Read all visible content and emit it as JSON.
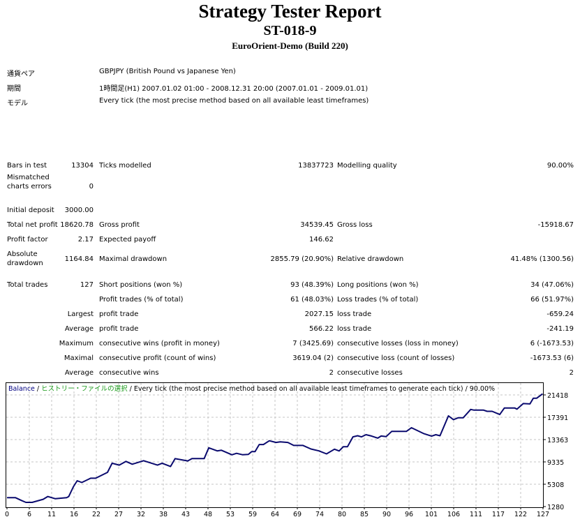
{
  "header": {
    "title": "Strategy Tester Report",
    "expert": "ST-018-9",
    "server": "EuroOrient-Demo (Build 220)"
  },
  "info": [
    {
      "label": "通貨ペア",
      "value": "GBPJPY (British Pound vs Japanese Yen)"
    },
    {
      "label": "期間",
      "value": "1時間足(H1) 2007.01.02 01:00 - 2008.12.31 20:00 (2007.01.01 - 2009.01.01)"
    },
    {
      "label": "モデル",
      "value": "Every tick (the most precise method based on all available least timeframes)"
    }
  ],
  "stats": [
    {
      "l1": "Bars in test",
      "v1": "13304",
      "l2": "Ticks modelled",
      "v2": "13837723",
      "l3": "Modelling quality",
      "v3": "90.00%"
    },
    {
      "l1": "Mismatched charts errors",
      "v1": "0",
      "l2": "",
      "v2": "",
      "l3": "",
      "v3": ""
    },
    {
      "l1": "Initial deposit",
      "v1": "3000.00",
      "l2": "",
      "v2": "",
      "l3": "",
      "v3": ""
    },
    {
      "l1": "Total net profit",
      "v1": "18620.78",
      "l2": "Gross profit",
      "v2": "34539.45",
      "l3": "Gross loss",
      "v3": "-15918.67"
    },
    {
      "l1": "Profit factor",
      "v1": "2.17",
      "l2": "Expected payoff",
      "v2": "146.62",
      "l3": "",
      "v3": ""
    },
    {
      "l1": "Absolute drawdown",
      "v1": "1164.84",
      "l2": "Maximal drawdown",
      "v2": "2855.79 (20.90%)",
      "l3": "Relative drawdown",
      "v3": "41.48% (1300.56)"
    },
    {
      "l1": "Total trades",
      "v1": "127",
      "l2": "Short positions (won %)",
      "v2": "93 (48.39%)",
      "l3": "Long positions (won %)",
      "v3": "34 (47.06%)"
    },
    {
      "l1": "",
      "v1": "",
      "l2": "Profit trades (% of total)",
      "v2": "61 (48.03%)",
      "l3": "Loss trades (% of total)",
      "v3": "66 (51.97%)"
    },
    {
      "l1": "",
      "v1": "Largest",
      "l2": "profit trade",
      "v2": "2027.15",
      "l3": "loss trade",
      "v3": "-659.24"
    },
    {
      "l1": "",
      "v1": "Average",
      "l2": "profit trade",
      "v2": "566.22",
      "l3": "loss trade",
      "v3": "-241.19"
    },
    {
      "l1": "",
      "v1": "Maximum",
      "l2": "consecutive wins (profit in money)",
      "v2": "7 (3425.69)",
      "l3": "consecutive losses (loss in money)",
      "v3": "6 (-1673.53)"
    },
    {
      "l1": "",
      "v1": "Maximal",
      "l2": "consecutive profit (count of wins)",
      "v2": "3619.04 (2)",
      "l3": "consecutive loss (count of losses)",
      "v3": "-1673.53 (6)"
    },
    {
      "l1": "",
      "v1": "Average",
      "l2": "consecutive wins",
      "v2": "2",
      "l3": "consecutive losses",
      "v3": "2"
    }
  ],
  "chart_data": {
    "type": "line",
    "title_parts": [
      "Balance",
      " / ",
      "ヒストリー・ファイルの選択",
      " / Every tick (the most precise method based on all available least timeframes to generate each tick) / 90.00%"
    ],
    "xlabel": "",
    "ylabel": "",
    "xlim": [
      0,
      127.5
    ],
    "ylim": [
      1280,
      21418
    ],
    "x_ticks": [
      "0",
      "6",
      "11",
      "16",
      "22",
      "27",
      "32",
      "38",
      "43",
      "48",
      "53",
      "59",
      "64",
      "69",
      "74",
      "80",
      "85",
      "90",
      "96",
      "101",
      "106",
      "111",
      "117",
      "122",
      "127"
    ],
    "y_ticks": [
      "21418",
      "17391",
      "13363",
      "9335",
      "5308",
      "1280"
    ],
    "grid": true,
    "colors": {
      "line": "#0a0a6e",
      "grid": "#c4c4c4",
      "balance_label": "#000080",
      "history_label": "#1a9a1a"
    },
    "series": [
      {
        "name": "Balance",
        "x": [
          0,
          2,
          3.4,
          4.5,
          6,
          8.6,
          9.7,
          11.5,
          14.2,
          14.7,
          15.8,
          16.7,
          17.8,
          19.9,
          21.1,
          23.9,
          25,
          26.7,
          28.3,
          29.8,
          32.5,
          35.8,
          36.9,
          38.9,
          40,
          43,
          44,
          46.9,
          48,
          50,
          51,
          53.5,
          54.6,
          56,
          57.4,
          58.2,
          59,
          60,
          61,
          62.4,
          64,
          65,
          66.8,
          68.2,
          70.4,
          72.3,
          74.2,
          76,
          77.9,
          79,
          80,
          81,
          82.3,
          83.4,
          84.3,
          85.4,
          86.7,
          88.2,
          89,
          90.2,
          91.5,
          95,
          96.2,
          99.2,
          101,
          102,
          103,
          105,
          106.2,
          107.3,
          108.5,
          110.3,
          111,
          113.3,
          114.2,
          115.4,
          117.2,
          118.3,
          120.8,
          121.3,
          122.8,
          124.4,
          125.2,
          126,
          127.4
        ],
        "y": [
          3000,
          3000,
          2500,
          2160,
          2160,
          2700,
          3200,
          2800,
          3000,
          3200,
          4970,
          6030,
          5720,
          6480,
          6480,
          7540,
          9170,
          8840,
          9500,
          9000,
          9620,
          8830,
          9170,
          8580,
          10000,
          9590,
          10000,
          10000,
          11940,
          11390,
          11500,
          10680,
          10950,
          10700,
          10750,
          11260,
          11260,
          12520,
          12520,
          13200,
          12900,
          13000,
          12900,
          12360,
          12360,
          11730,
          11390,
          10850,
          11690,
          11380,
          12140,
          12140,
          13900,
          14100,
          13900,
          14290,
          14050,
          13680,
          14050,
          13950,
          14880,
          14880,
          15540,
          14460,
          14030,
          14290,
          14100,
          17670,
          16980,
          17310,
          17310,
          18820,
          18700,
          18700,
          18480,
          18480,
          17900,
          19070,
          19070,
          18870,
          19870,
          19800,
          20830,
          20830,
          21620
        ]
      }
    ]
  }
}
